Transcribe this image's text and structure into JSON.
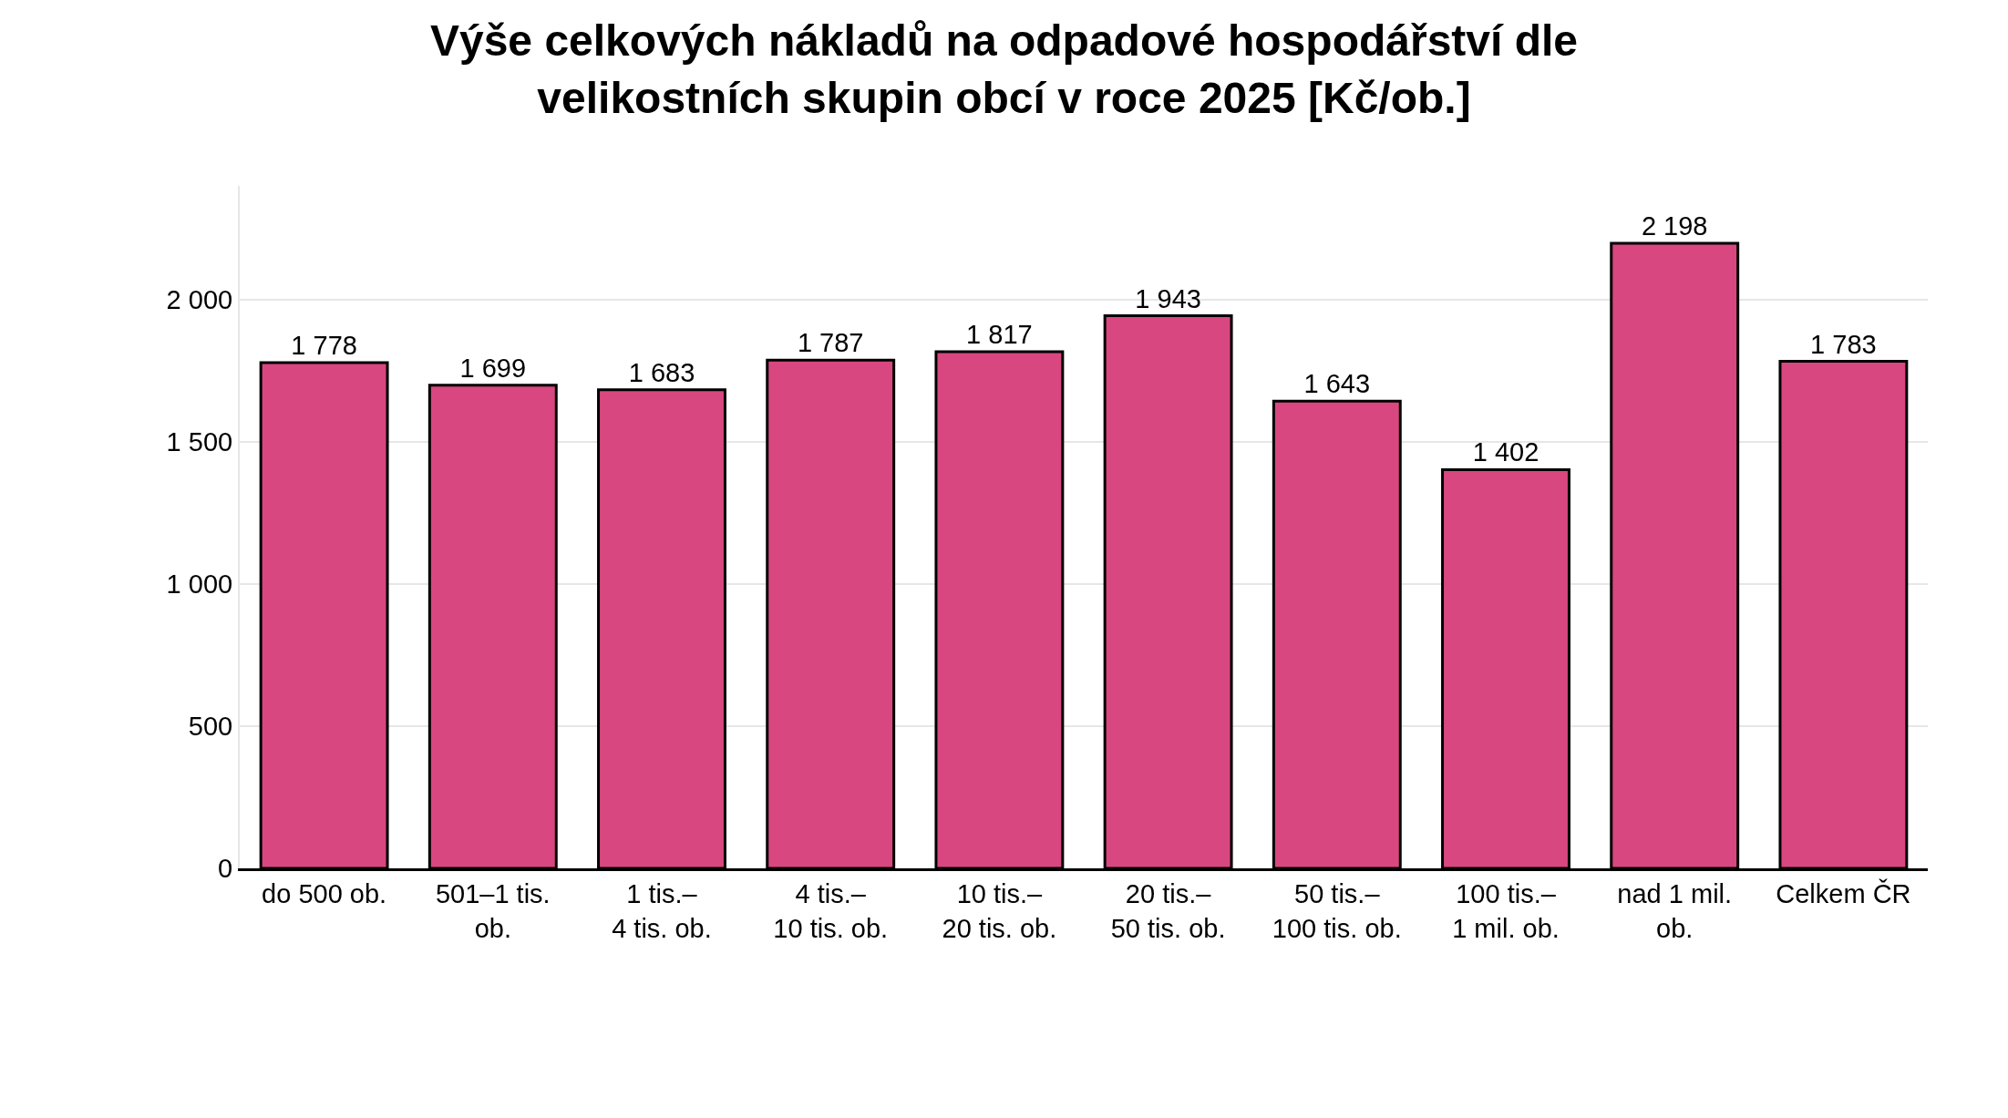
{
  "chart_data": {
    "type": "bar",
    "title": "Výše celkových nákladů na odpadové hospodářství dle velikostních skupin obcí v roce 2025 [Kč/ob.]",
    "categories": [
      "do 500 ob.",
      "501–1 tis. ob.",
      "1 tis.–4 tis. ob.",
      "4 tis.–10 tis. ob.",
      "10 tis.–20 tis. ob.",
      "20 tis.–50 tis. ob.",
      "50 tis.–100 tis. ob.",
      "100 tis.–1 mil. ob.",
      "nad 1 mil. ob.",
      "Celkem ČR"
    ],
    "values": [
      1778,
      1699,
      1683,
      1787,
      1817,
      1943,
      1643,
      1402,
      2198,
      1783
    ],
    "value_labels": [
      "1 778",
      "1 699",
      "1 683",
      "1 787",
      "1 817",
      "1 943",
      "1 643",
      "1 402",
      "2 198",
      "1 783"
    ],
    "color": "#d94780",
    "ylim": [
      0,
      2400
    ],
    "yticks": [
      0,
      500,
      {
        "value": 1000,
        "label": "1 000"
      },
      {
        "value": 1500,
        "label": "1 500"
      },
      {
        "value": 2000,
        "label": "2 000"
      }
    ],
    "grid": "y"
  }
}
